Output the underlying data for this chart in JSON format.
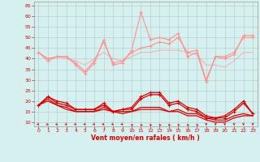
{
  "xlabel": "Vent moyen/en rafales ( km/h )",
  "x": [
    0,
    1,
    2,
    3,
    4,
    5,
    6,
    7,
    8,
    9,
    10,
    11,
    12,
    13,
    14,
    15,
    16,
    17,
    18,
    19,
    20,
    21,
    22,
    23
  ],
  "gust1": [
    43,
    39,
    41,
    41,
    37,
    33,
    38,
    49,
    37,
    38,
    44,
    62,
    49,
    50,
    49,
    52,
    41,
    43,
    29,
    41,
    40,
    42,
    51,
    51
  ],
  "gust2": [
    43,
    40,
    41,
    41,
    38,
    34,
    39,
    48,
    38,
    39,
    43,
    45,
    46,
    48,
    47,
    50,
    43,
    44,
    30,
    41,
    41,
    43,
    50,
    50
  ],
  "gust3": [
    43,
    40,
    41,
    40,
    39,
    37,
    40,
    43,
    40,
    39,
    41,
    43,
    43,
    44,
    44,
    44,
    43,
    42,
    37,
    37,
    36,
    39,
    43,
    43
  ],
  "wind1": [
    18,
    22,
    20,
    19,
    16,
    16,
    16,
    19,
    15,
    16,
    17,
    22,
    24,
    24,
    19,
    20,
    17,
    16,
    13,
    12,
    13,
    16,
    20,
    14
  ],
  "wind2": [
    18,
    22,
    19,
    18,
    16,
    16,
    16,
    18,
    15,
    16,
    16,
    21,
    23,
    23,
    18,
    19,
    16,
    15,
    12,
    12,
    12,
    15,
    19,
    14
  ],
  "wind3": [
    18,
    21,
    18,
    17,
    15,
    15,
    15,
    17,
    15,
    15,
    15,
    17,
    17,
    17,
    15,
    16,
    14,
    14,
    12,
    11,
    11,
    13,
    14,
    13
  ],
  "wind4": [
    18,
    20,
    18,
    16,
    15,
    15,
    15,
    16,
    15,
    14,
    15,
    16,
    16,
    16,
    15,
    15,
    13,
    13,
    11,
    10,
    10,
    12,
    13,
    13
  ],
  "bg_color": "#d6f0f0",
  "grid_color": "#b0c8c8",
  "light_red": "#ff9090",
  "dark_red": "#dd0000",
  "yticks": [
    10,
    15,
    20,
    25,
    30,
    35,
    40,
    45,
    50,
    55,
    60,
    65
  ],
  "xticks": [
    0,
    1,
    2,
    3,
    4,
    5,
    6,
    7,
    8,
    9,
    10,
    11,
    12,
    13,
    14,
    15,
    16,
    17,
    18,
    19,
    20,
    21,
    22,
    23
  ]
}
